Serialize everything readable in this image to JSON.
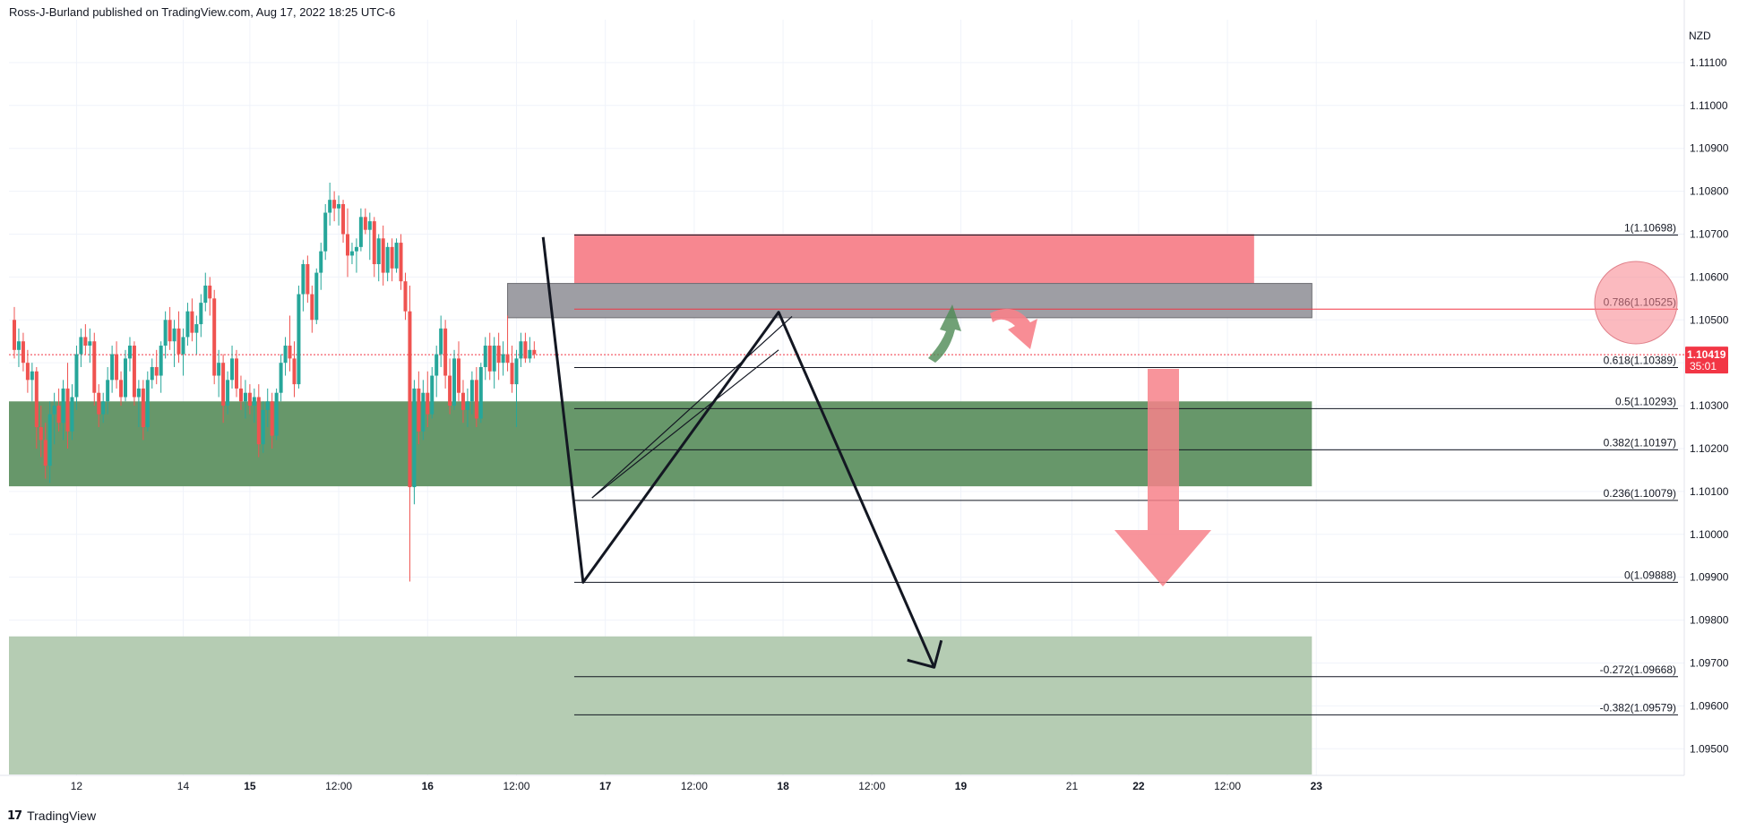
{
  "header": {
    "text": "Ross-J-Burland published on TradingView.com, Aug 17, 2022 18:25 UTC-6"
  },
  "footer": {
    "logo": "17",
    "brand": "TradingView"
  },
  "colors": {
    "up": "#26a69a",
    "down": "#ef5350",
    "resistance_zone": "#f7818a",
    "supply_zone": "#9e9ea4",
    "support_zone": "#67976a",
    "target_zone": "#b5ccb3",
    "last_price_bg": "#f23645",
    "fib_line": "#131722"
  },
  "chart_data": {
    "type": "candlestick",
    "symbol_currency": "NZD",
    "ylim": [
      1.0944,
      1.112
    ],
    "y_ticks": [
      "1.11100",
      "1.11000",
      "1.10900",
      "1.10800",
      "1.10700",
      "1.10600",
      "1.10500",
      "1.10400",
      "1.10300",
      "1.10200",
      "1.10100",
      "1.10000",
      "1.09900",
      "1.09800",
      "1.09700",
      "1.09600",
      "1.09500"
    ],
    "x_ticks": [
      {
        "label": "12",
        "bar": 14,
        "bold": false
      },
      {
        "label": "14",
        "bar": 38,
        "bold": false
      },
      {
        "label": "15",
        "bar": 53,
        "bold": true
      },
      {
        "label": "12:00",
        "bar": 73,
        "bold": false
      },
      {
        "label": "16",
        "bar": 93,
        "bold": true
      },
      {
        "label": "12:00",
        "bar": 113,
        "bold": false
      },
      {
        "label": "17",
        "bar": 133,
        "bold": true
      },
      {
        "label": "12:00",
        "bar": 153,
        "bold": false
      },
      {
        "label": "18",
        "bar": 173,
        "bold": true
      },
      {
        "label": "12:00",
        "bar": 193,
        "bold": false
      },
      {
        "label": "19",
        "bar": 213,
        "bold": true
      },
      {
        "label": "21",
        "bar": 238,
        "bold": false
      },
      {
        "label": "22",
        "bar": 253,
        "bold": true
      },
      {
        "label": "12:00",
        "bar": 273,
        "bold": false
      },
      {
        "label": "23",
        "bar": 293,
        "bold": true
      }
    ],
    "last_price": {
      "value": "1.10419",
      "countdown": "35:01",
      "price": 1.10419
    },
    "candles": [
      [
        1.105,
        1.1053,
        1.1041,
        1.1043
      ],
      [
        1.1043,
        1.1048,
        1.1039,
        1.1045
      ],
      [
        1.1045,
        1.1047,
        1.1038,
        1.104
      ],
      [
        1.104,
        1.1043,
        1.1033,
        1.1036
      ],
      [
        1.1036,
        1.104,
        1.1031,
        1.1038
      ],
      [
        1.1038,
        1.1039,
        1.102,
        1.1025
      ],
      [
        1.1025,
        1.103,
        1.1018,
        1.1022
      ],
      [
        1.1022,
        1.1026,
        1.1013,
        1.1016
      ],
      [
        1.1016,
        1.1031,
        1.1012,
        1.1028
      ],
      [
        1.1028,
        1.1033,
        1.1021,
        1.103
      ],
      [
        1.103,
        1.1034,
        1.1024,
        1.1026
      ],
      [
        1.1026,
        1.1036,
        1.1022,
        1.1034
      ],
      [
        1.1034,
        1.104,
        1.102,
        1.1024
      ],
      [
        1.1024,
        1.1035,
        1.1022,
        1.1032
      ],
      [
        1.1032,
        1.1044,
        1.1029,
        1.1042
      ],
      [
        1.1042,
        1.1048,
        1.1039,
        1.1046
      ],
      [
        1.1046,
        1.1049,
        1.1042,
        1.1044
      ],
      [
        1.1044,
        1.1048,
        1.104,
        1.1045
      ],
      [
        1.1045,
        1.1047,
        1.103,
        1.1033
      ],
      [
        1.1033,
        1.1035,
        1.1025,
        1.1028
      ],
      [
        1.1028,
        1.1033,
        1.1026,
        1.1031
      ],
      [
        1.1031,
        1.1039,
        1.1028,
        1.1036
      ],
      [
        1.1036,
        1.1044,
        1.1033,
        1.1042
      ],
      [
        1.1042,
        1.1045,
        1.1034,
        1.1036
      ],
      [
        1.1036,
        1.1038,
        1.103,
        1.1032
      ],
      [
        1.1032,
        1.1043,
        1.1031,
        1.1041
      ],
      [
        1.1041,
        1.1046,
        1.1038,
        1.1044
      ],
      [
        1.1044,
        1.1045,
        1.103,
        1.1032
      ],
      [
        1.1032,
        1.1036,
        1.1025,
        1.1034
      ],
      [
        1.1034,
        1.1036,
        1.1022,
        1.1025
      ],
      [
        1.1025,
        1.1038,
        1.1024,
        1.1036
      ],
      [
        1.1036,
        1.1041,
        1.1034,
        1.1039
      ],
      [
        1.1039,
        1.1043,
        1.1035,
        1.1037
      ],
      [
        1.1037,
        1.1045,
        1.1033,
        1.1044
      ],
      [
        1.1044,
        1.1052,
        1.1041,
        1.105
      ],
      [
        1.105,
        1.1053,
        1.1043,
        1.1045
      ],
      [
        1.1045,
        1.105,
        1.1039,
        1.1048
      ],
      [
        1.1048,
        1.1052,
        1.104,
        1.1042
      ],
      [
        1.1042,
        1.1048,
        1.1037,
        1.1046
      ],
      [
        1.1046,
        1.1054,
        1.1044,
        1.1052
      ],
      [
        1.1052,
        1.1055,
        1.1045,
        1.1047
      ],
      [
        1.1047,
        1.1051,
        1.1042,
        1.1049
      ],
      [
        1.1049,
        1.1056,
        1.1046,
        1.1054
      ],
      [
        1.1054,
        1.1061,
        1.1052,
        1.1058
      ],
      [
        1.1058,
        1.106,
        1.1051,
        1.1055
      ],
      [
        1.1055,
        1.1057,
        1.1035,
        1.1037
      ],
      [
        1.1037,
        1.1043,
        1.1032,
        1.104
      ],
      [
        1.104,
        1.1042,
        1.1026,
        1.103
      ],
      [
        1.103,
        1.1038,
        1.1028,
        1.1036
      ],
      [
        1.1036,
        1.1044,
        1.1034,
        1.1041
      ],
      [
        1.1041,
        1.1043,
        1.1032,
        1.1034
      ],
      [
        1.1034,
        1.1037,
        1.1029,
        1.1031
      ],
      [
        1.1031,
        1.1036,
        1.1027,
        1.1033
      ],
      [
        1.1033,
        1.1035,
        1.1028,
        1.103
      ],
      [
        1.103,
        1.1034,
        1.1026,
        1.1032
      ],
      [
        1.1032,
        1.1035,
        1.1018,
        1.1021
      ],
      [
        1.1021,
        1.1031,
        1.1019,
        1.1029
      ],
      [
        1.1029,
        1.1034,
        1.1025,
        1.1031
      ],
      [
        1.1031,
        1.1033,
        1.102,
        1.1023
      ],
      [
        1.1023,
        1.1034,
        1.1022,
        1.1033
      ],
      [
        1.1033,
        1.1042,
        1.1031,
        1.104
      ],
      [
        1.104,
        1.1046,
        1.1037,
        1.1044
      ],
      [
        1.1044,
        1.1051,
        1.1038,
        1.1041
      ],
      [
        1.1041,
        1.1045,
        1.1032,
        1.1035
      ],
      [
        1.1035,
        1.1058,
        1.1034,
        1.1056
      ],
      [
        1.1056,
        1.1064,
        1.1052,
        1.1063
      ],
      [
        1.1063,
        1.1065,
        1.1054,
        1.1056
      ],
      [
        1.1056,
        1.1058,
        1.1047,
        1.105
      ],
      [
        1.105,
        1.1062,
        1.1049,
        1.1061
      ],
      [
        1.1061,
        1.1068,
        1.1057,
        1.1066
      ],
      [
        1.1066,
        1.1077,
        1.1064,
        1.1075
      ],
      [
        1.1075,
        1.1082,
        1.1072,
        1.1078
      ],
      [
        1.1078,
        1.108,
        1.1073,
        1.1076
      ],
      [
        1.1076,
        1.1079,
        1.1072,
        1.1077
      ],
      [
        1.1077,
        1.1078,
        1.1068,
        1.107
      ],
      [
        1.107,
        1.1076,
        1.106,
        1.1065
      ],
      [
        1.1065,
        1.1068,
        1.1063,
        1.1066
      ],
      [
        1.1066,
        1.1069,
        1.1061,
        1.1067
      ],
      [
        1.1067,
        1.1076,
        1.1066,
        1.1074
      ],
      [
        1.1074,
        1.1076,
        1.107,
        1.1071
      ],
      [
        1.1071,
        1.1075,
        1.1064,
        1.1073
      ],
      [
        1.1073,
        1.1074,
        1.106,
        1.1063
      ],
      [
        1.1063,
        1.107,
        1.1059,
        1.1069
      ],
      [
        1.1069,
        1.1072,
        1.1058,
        1.1061
      ],
      [
        1.1061,
        1.1068,
        1.1059,
        1.1067
      ],
      [
        1.1067,
        1.1069,
        1.1059,
        1.1062
      ],
      [
        1.1062,
        1.1069,
        1.1061,
        1.1068
      ],
      [
        1.1068,
        1.107,
        1.1057,
        1.1059
      ],
      [
        1.1059,
        1.1061,
        1.105,
        1.1052
      ],
      [
        1.1052,
        1.1058,
        1.0989,
        1.1011
      ],
      [
        1.1011,
        1.1036,
        1.1007,
        1.1034
      ],
      [
        1.1034,
        1.1038,
        1.1021,
        1.1024
      ],
      [
        1.1024,
        1.1036,
        1.1022,
        1.1033
      ],
      [
        1.1033,
        1.1038,
        1.1025,
        1.1028
      ],
      [
        1.1028,
        1.1039,
        1.1027,
        1.1037
      ],
      [
        1.1037,
        1.1044,
        1.1032,
        1.1042
      ],
      [
        1.1042,
        1.1051,
        1.1039,
        1.1048
      ],
      [
        1.1048,
        1.105,
        1.1034,
        1.1037
      ],
      [
        1.1037,
        1.1041,
        1.1028,
        1.103
      ],
      [
        1.103,
        1.1043,
        1.1029,
        1.1041
      ],
      [
        1.1041,
        1.1045,
        1.1031,
        1.1033
      ],
      [
        1.1033,
        1.1036,
        1.1026,
        1.1029
      ],
      [
        1.1029,
        1.1034,
        1.1025,
        1.1031
      ],
      [
        1.1031,
        1.1038,
        1.1028,
        1.1036
      ],
      [
        1.1036,
        1.1039,
        1.1025,
        1.1027
      ],
      [
        1.1027,
        1.104,
        1.1026,
        1.1039
      ],
      [
        1.1039,
        1.1046,
        1.1036,
        1.1044
      ],
      [
        1.1044,
        1.1047,
        1.1036,
        1.1038
      ],
      [
        1.1038,
        1.1046,
        1.1034,
        1.1044
      ],
      [
        1.1044,
        1.1047,
        1.1036,
        1.104
      ],
      [
        1.104,
        1.1045,
        1.1037,
        1.1042
      ],
      [
        1.1042,
        1.1051,
        1.1038,
        1.104
      ],
      [
        1.104,
        1.1044,
        1.1033,
        1.1035
      ],
      [
        1.1035,
        1.1043,
        1.1025,
        1.1041
      ],
      [
        1.1041,
        1.1047,
        1.1039,
        1.1045
      ],
      [
        1.1045,
        1.1047,
        1.104,
        1.1041
      ],
      [
        1.1041,
        1.1046,
        1.104,
        1.1043
      ],
      [
        1.1043,
        1.1045,
        1.1041,
        1.1042
      ]
    ],
    "fib_levels": [
      {
        "label": "1(1.10698)",
        "price": 1.10698,
        "color": "#131722"
      },
      {
        "label": "0.786(1.10525)",
        "price": 1.10525,
        "color": "#f23645"
      },
      {
        "label": "0.618(1.10389)",
        "price": 1.10389,
        "color": "#131722"
      },
      {
        "label": "0.5(1.10293)",
        "price": 1.10293,
        "color": "#131722"
      },
      {
        "label": "0.382(1.10197)",
        "price": 1.10197,
        "color": "#131722"
      },
      {
        "label": "0.236(1.10079)",
        "price": 1.10079,
        "color": "#131722"
      },
      {
        "label": "0(1.09888)",
        "price": 1.09888,
        "color": "#131722"
      },
      {
        "label": "-0.272(1.09668)",
        "price": 1.09668,
        "color": "#131722"
      },
      {
        "label": "-0.382(1.09579)",
        "price": 1.09579,
        "color": "#131722"
      }
    ],
    "fib_start_bar": 126,
    "zones": [
      {
        "name": "resistance-zone",
        "bar_from": 126,
        "bar_to": 279,
        "price_top": 1.107,
        "price_bottom": 1.10575,
        "color": "#f7818a"
      },
      {
        "name": "supply-zone",
        "bar_from": 111,
        "bar_to": 292,
        "price_top": 1.10585,
        "price_bottom": 1.10505,
        "color": "#9e9ea4"
      },
      {
        "name": "support-zone",
        "bar_from": -1,
        "bar_to": 292,
        "price_top": 1.1031,
        "price_bottom": 1.10112,
        "color": "#67976a"
      },
      {
        "name": "target-zone",
        "bar_from": -1,
        "bar_to": 292,
        "price_top": 1.09762,
        "price_bottom": 1.0944,
        "color": "#b5ccb3"
      }
    ],
    "drawings": {
      "zigzag": [
        [
          119,
          1.10693
        ],
        [
          128,
          1.09888
        ],
        [
          172,
          1.10518
        ],
        [
          207,
          1.0969
        ]
      ],
      "rising_wedge": [
        [
          130,
          1.10085
        ],
        [
          175,
          1.10508
        ],
        [
          130,
          1.10085
        ]
      ],
      "support_trendline": [
        [
          130,
          1.10085
        ],
        [
          172,
          1.1043
        ]
      ],
      "down_arrow": {
        "bar": 207,
        "price": 1.0969
      }
    }
  }
}
